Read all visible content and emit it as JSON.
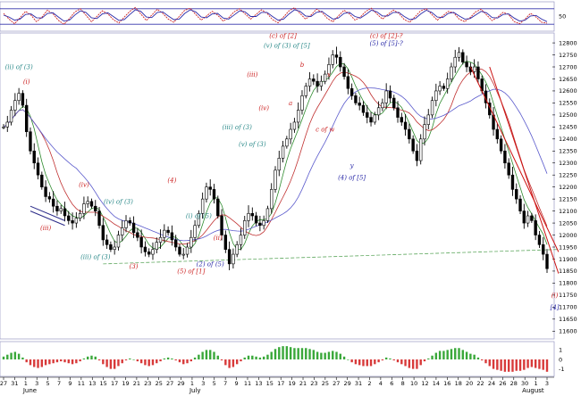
{
  "chart_data": [
    {
      "type": "line",
      "panel": "oscillator",
      "y_ticks": [
        "50"
      ],
      "reference_levels": [
        80,
        20
      ],
      "series": [
        {
          "color": "#cc2222",
          "values": [
            62,
            40,
            22,
            45,
            70,
            55,
            30,
            48,
            75,
            60,
            35,
            20,
            42,
            68,
            80,
            55,
            30,
            50,
            72,
            60,
            38,
            25,
            48,
            70,
            85,
            60,
            35,
            55,
            78,
            62,
            40,
            28,
            50,
            74,
            82,
            58,
            36,
            52,
            70,
            55,
            32,
            45,
            68,
            80,
            60,
            40,
            58,
            76,
            62,
            38,
            26,
            48,
            72,
            84,
            62,
            40,
            55,
            78,
            66,
            42,
            30,
            52,
            74,
            60,
            36,
            48,
            70,
            82,
            60,
            40,
            58,
            75,
            62,
            38,
            28,
            50,
            72,
            80,
            58,
            36,
            52,
            70,
            64,
            40,
            30,
            46,
            68,
            78,
            56,
            34,
            48,
            66,
            58,
            30,
            22,
            40,
            62,
            48,
            28,
            24
          ]
        },
        {
          "color": "#2a2aa8",
          "values": [
            55,
            48,
            36,
            40,
            58,
            60,
            45,
            44,
            62,
            64,
            48,
            32,
            36,
            56,
            72,
            66,
            45,
            42,
            60,
            64,
            50,
            35,
            38,
            58,
            76,
            70,
            48,
            46,
            66,
            68,
            52,
            38,
            40,
            62,
            76,
            68,
            48,
            45,
            60,
            62,
            44,
            40,
            56,
            72,
            68,
            50,
            50,
            66,
            66,
            50,
            36,
            40,
            60,
            76,
            70,
            52,
            50,
            66,
            70,
            54,
            40,
            44,
            62,
            66,
            50,
            44,
            58,
            74,
            68,
            52,
            52,
            66,
            66,
            50,
            38,
            42,
            60,
            74,
            66,
            48,
            46,
            62,
            66,
            52,
            40,
            42,
            56,
            70,
            64,
            46,
            44,
            58,
            60,
            44,
            32,
            36,
            52,
            54,
            40,
            30
          ]
        }
      ]
    },
    {
      "type": "candlestick",
      "panel": "price",
      "x_tick_labels": [
        "27",
        "31",
        "1",
        "3",
        "5",
        "7",
        "9",
        "11",
        "13",
        "15",
        "17",
        "19",
        "21",
        "23",
        "25",
        "27",
        "29",
        "1",
        "3",
        "5",
        "7",
        "9",
        "11",
        "13",
        "15",
        "17",
        "19",
        "21",
        "23",
        "25",
        "27",
        "29",
        "31",
        "2",
        "4",
        "6",
        "8",
        "10",
        "12",
        "14",
        "16",
        "18",
        "20",
        "22",
        "24",
        "26",
        "28",
        "30",
        "1",
        "3"
      ],
      "month_labels": [
        "June",
        "July",
        "August"
      ],
      "y_tick_labels": [
        "11600",
        "11650",
        "11700",
        "11750",
        "11800",
        "11850",
        "11900",
        "11950",
        "12000",
        "12050",
        "12100",
        "12150",
        "12200",
        "12250",
        "12300",
        "12350",
        "12400",
        "12450",
        "12500",
        "12550",
        "12600",
        "12650",
        "12700",
        "12750",
        "12800"
      ],
      "ylim": [
        11575,
        12830
      ],
      "close": [
        12450,
        12470,
        12520,
        12560,
        12590,
        12540,
        12430,
        12350,
        12300,
        12250,
        12200,
        12160,
        12150,
        12120,
        12100,
        12110,
        12080,
        12060,
        12050,
        12070,
        12090,
        12130,
        12140,
        12120,
        12100,
        12040,
        11980,
        11960,
        11940,
        11950,
        12000,
        12030,
        12060,
        12050,
        12010,
        11990,
        11950,
        11930,
        11920,
        11940,
        11970,
        11990,
        12020,
        12010,
        11980,
        11950,
        11920,
        11920,
        11950,
        11990,
        12040,
        12090,
        12150,
        12200,
        12190,
        12150,
        12080,
        12000,
        11940,
        11880,
        11920,
        11960,
        12000,
        12060,
        12090,
        12080,
        12050,
        12040,
        12060,
        12110,
        12190,
        12270,
        12320,
        12370,
        12400,
        12440,
        12470,
        12520,
        12580,
        12620,
        12650,
        12640,
        12620,
        12640,
        12670,
        12710,
        12750,
        12740,
        12700,
        12660,
        12610,
        12580,
        12550,
        12540,
        12510,
        12490,
        12470,
        12500,
        12530,
        12550,
        12600,
        12570,
        12530,
        12490,
        12470,
        12440,
        12400,
        12350,
        12310,
        12400,
        12460,
        12500,
        12560,
        12600,
        12620,
        12610,
        12650,
        12700,
        12740,
        12760,
        12720,
        12700,
        12680,
        12700,
        12650,
        12600,
        12550,
        12500,
        12440,
        12400,
        12350,
        12300,
        12250,
        12190,
        12150,
        12100,
        12050,
        12080,
        12060,
        12000,
        11960,
        11920,
        11860
      ],
      "indicators": [
        {
          "name": "",
          "color": "#2e8b2e",
          "period": 5
        },
        {
          "name": "",
          "color": "#c03030",
          "period": 10
        },
        {
          "name": "",
          "color": "#5a5acc",
          "period": 20
        }
      ],
      "channel_lines": [
        {
          "color": "#cc1111",
          "from": [
            122,
            12700
          ],
          "to": [
            145,
            11930
          ]
        },
        {
          "color": "#cc1111",
          "from": [
            127,
            12700
          ],
          "to": [
            145,
            11840
          ]
        },
        {
          "color": "#2a2a88",
          "from": [
            7,
            12120
          ],
          "to": [
            16,
            12060
          ]
        },
        {
          "color": "#2a2a88",
          "from": [
            7,
            12100
          ],
          "to": [
            16,
            12040
          ]
        }
      ],
      "support_line": {
        "color": "#5fa85f",
        "from": [
          26,
          11880
        ],
        "to": [
          145,
          11940
        ]
      },
      "annotations": [
        {
          "text": "(ii) of (3)",
          "color": "#2c8a8a",
          "x": 4,
          "y": 12690
        },
        {
          "text": "(i)",
          "color": "#cc2222",
          "x": 6,
          "y": 12630
        },
        {
          "text": "(iii)",
          "color": "#cc2222",
          "x": 11,
          "y": 12020
        },
        {
          "text": "(iv)",
          "color": "#cc2222",
          "x": 21,
          "y": 12200
        },
        {
          "text": "(iv) of (3)",
          "color": "#2c8a8a",
          "x": 30,
          "y": 12130
        },
        {
          "text": "(iii) of (3)",
          "color": "#2c8a8a",
          "x": 24,
          "y": 11900
        },
        {
          "text": "(3)",
          "color": "#cc2222",
          "x": 34,
          "y": 11860
        },
        {
          "text": "(4)",
          "color": "#cc2222",
          "x": 44,
          "y": 12220
        },
        {
          "text": "(i) of (5)",
          "color": "#2c8a8a",
          "x": 51,
          "y": 12070
        },
        {
          "text": "(ii)",
          "color": "#cc2222",
          "x": 56,
          "y": 11980
        },
        {
          "text": "(2) of (5)",
          "color": "#2a2aa8",
          "x": 54,
          "y": 11870
        },
        {
          "text": "(5) of [1]",
          "color": "#cc2222",
          "x": 49,
          "y": 11840
        },
        {
          "text": "(iii) of (3)",
          "color": "#2c8a8a",
          "x": 61,
          "y": 12440
        },
        {
          "text": "(iii)",
          "color": "#cc2222",
          "x": 65,
          "y": 12660
        },
        {
          "text": "(iv)",
          "color": "#cc2222",
          "x": 68,
          "y": 12520
        },
        {
          "text": "(v) of (3)",
          "color": "#2c8a8a",
          "x": 65,
          "y": 12370
        },
        {
          "text": "(v) of (3) of [5]",
          "color": "#2c8a8a",
          "x": 74,
          "y": 12780
        },
        {
          "text": "(c) of [2]",
          "color": "#cc2222",
          "x": 73,
          "y": 12820
        },
        {
          "text": "b",
          "color": "#cc2222",
          "x": 78,
          "y": 12700
        },
        {
          "text": "a",
          "color": "#cc2222",
          "x": 75,
          "y": 12540
        },
        {
          "text": "c of w",
          "color": "#cc2222",
          "x": 84,
          "y": 12430
        },
        {
          "text": "x",
          "color": "#cc2222",
          "x": 85,
          "y": 12660
        },
        {
          "text": "y",
          "color": "#2a2aa8",
          "x": 91,
          "y": 12280
        },
        {
          "text": "(4) of [5]",
          "color": "#2a2aa8",
          "x": 91,
          "y": 12230
        },
        {
          "text": "(c) of [2]-?",
          "color": "#cc2222",
          "x": 100,
          "y": 12820
        },
        {
          "text": "(5) of [5]-?",
          "color": "#2a2aa8",
          "x": 100,
          "y": 12790
        },
        {
          "text": "(i)",
          "color": "#cc2222",
          "x": 144,
          "y": 11740
        },
        {
          "text": "[4]",
          "color": "#2a2aa8",
          "x": 144,
          "y": 11690
        }
      ]
    },
    {
      "type": "bar",
      "panel": "histogram",
      "y_ticks": [
        "1",
        "0",
        "-1"
      ],
      "ylim": [
        -1.6,
        1.6
      ],
      "positive_color": "#3aa83a",
      "negative_color": "#d83a3a",
      "values": [
        0.3,
        0.5,
        0.7,
        0.8,
        0.6,
        0.2,
        -0.3,
        -0.6,
        -0.8,
        -0.9,
        -0.8,
        -0.6,
        -0.5,
        -0.4,
        -0.3,
        -0.2,
        -0.3,
        -0.4,
        -0.5,
        -0.4,
        -0.2,
        0.1,
        0.3,
        0.4,
        0.3,
        -0.1,
        -0.5,
        -0.8,
        -1.0,
        -1.0,
        -0.7,
        -0.4,
        -0.1,
        0.1,
        0.0,
        -0.2,
        -0.4,
        -0.6,
        -0.7,
        -0.6,
        -0.4,
        -0.2,
        0.1,
        0.2,
        0.1,
        -0.1,
        -0.3,
        -0.5,
        -0.4,
        -0.2,
        0.2,
        0.5,
        0.8,
        1.0,
        1.0,
        0.8,
        0.4,
        -0.1,
        -0.6,
        -0.9,
        -0.8,
        -0.5,
        -0.2,
        0.2,
        0.4,
        0.4,
        0.3,
        0.2,
        0.3,
        0.5,
        0.8,
        1.1,
        1.3,
        1.4,
        1.4,
        1.3,
        1.2,
        1.2,
        1.2,
        1.2,
        1.1,
        1.0,
        0.8,
        0.7,
        0.7,
        0.8,
        0.9,
        0.8,
        0.6,
        0.3,
        0.0,
        -0.3,
        -0.5,
        -0.6,
        -0.7,
        -0.7,
        -0.7,
        -0.5,
        -0.3,
        -0.1,
        0.2,
        0.1,
        -0.1,
        -0.3,
        -0.5,
        -0.7,
        -0.9,
        -1.0,
        -1.0,
        -0.6,
        -0.2,
        0.1,
        0.4,
        0.7,
        0.9,
        0.9,
        1.0,
        1.1,
        1.2,
        1.2,
        1.0,
        0.8,
        0.6,
        0.5,
        0.2,
        -0.1,
        -0.4,
        -0.7,
        -1.0,
        -1.1,
        -1.2,
        -1.3,
        -1.3,
        -1.3,
        -1.2,
        -1.2,
        -1.1,
        -0.9,
        -0.8,
        -0.9,
        -1.0,
        -1.1,
        -1.3
      ]
    }
  ]
}
